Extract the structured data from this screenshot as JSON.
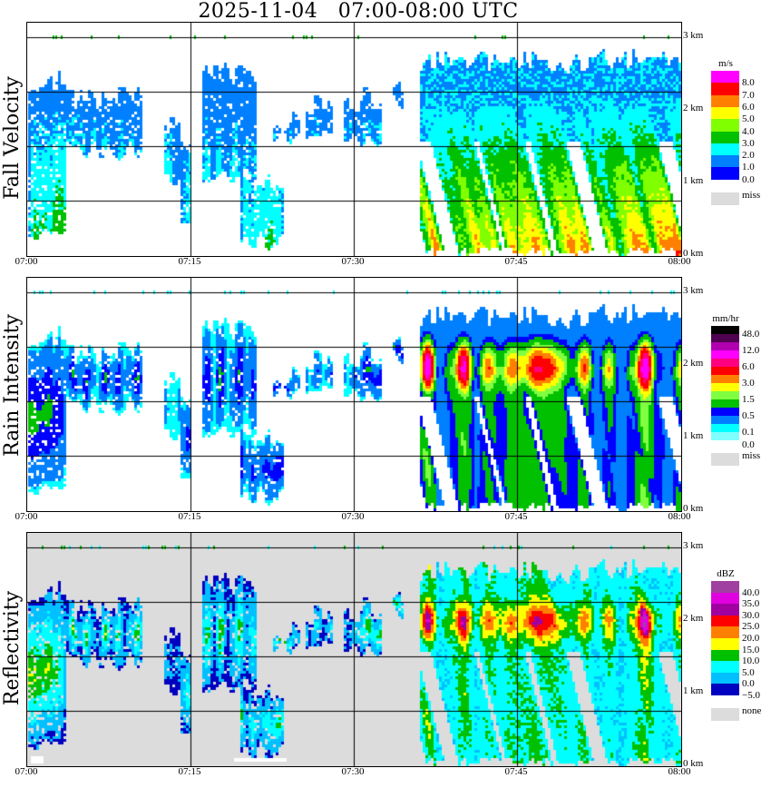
{
  "title": "2025-11-04   07:00-08:00 UTC",
  "chart_data": [
    {
      "type": "heatmap",
      "title": "Fall Velocity",
      "ylabel": "Fall Velocity",
      "unit": "m/s",
      "x_ticks": [
        "07:00",
        "07:15",
        "07:30",
        "07:45",
        "08:00"
      ],
      "xlim_minutes": [
        0,
        60
      ],
      "y_ticks": [
        "0 km",
        "1 km",
        "2 km",
        "3 km"
      ],
      "ylim_km": [
        0,
        3
      ],
      "colorbar_labels": [
        "8.0",
        "7.0",
        "6.0",
        "5.0",
        "4.0",
        "3.0",
        "2.0",
        "1.0",
        "0.0"
      ],
      "colorbar_colors": [
        "#ff00ff",
        "#ff0000",
        "#ff8000",
        "#ffff00",
        "#80ff00",
        "#00c000",
        "#00ffff",
        "#0080ff",
        "#0000ff"
      ],
      "missing_label": "miss",
      "missing_color": "#dcdcdc",
      "background": "#ffffff"
    },
    {
      "type": "heatmap",
      "title": "Rain Intensity",
      "ylabel": "Rain Intensity",
      "unit": "mm/hr",
      "x_ticks": [
        "07:00",
        "07:15",
        "07:30",
        "07:45",
        "08:00"
      ],
      "xlim_minutes": [
        0,
        60
      ],
      "y_ticks": [
        "0 km",
        "1 km",
        "2 km",
        "3 km"
      ],
      "ylim_km": [
        0,
        3
      ],
      "colorbar_labels": [
        "48.0",
        "12.0",
        "6.0",
        "3.0",
        "1.5",
        "0.5",
        "0.1",
        "0.0"
      ],
      "colorbar_colors": [
        "#000000",
        "#500050",
        "#b000b0",
        "#ff00ff",
        "#ff0080",
        "#ff0000",
        "#ff8000",
        "#ffff00",
        "#80ff40",
        "#00c000",
        "#0000ff",
        "#0080ff",
        "#00ffff",
        "#80ffff"
      ],
      "missing_label": "miss",
      "missing_color": "#dcdcdc",
      "background": "#ffffff"
    },
    {
      "type": "heatmap",
      "title": "Reflectivity",
      "ylabel": "Reflectivity",
      "unit": "dBZ",
      "x_ticks": [
        "07:00",
        "07:15",
        "07:30",
        "07:45",
        "08:00"
      ],
      "xlim_minutes": [
        0,
        60
      ],
      "y_ticks": [
        "0 km",
        "1 km",
        "2 km",
        "3 km"
      ],
      "ylim_km": [
        0,
        3
      ],
      "colorbar_labels": [
        "40.0",
        "35.0",
        "30.0",
        "25.0",
        "20.0",
        "15.0",
        "10.0",
        "5.0",
        "0.0",
        "−5.0"
      ],
      "colorbar_colors": [
        "#a040a0",
        "#e000e0",
        "#a000a0",
        "#ff0000",
        "#ff8000",
        "#ffff00",
        "#00c000",
        "#00ffff",
        "#00c0ff",
        "#0000c0"
      ],
      "missing_label": "none",
      "missing_color": "#dcdcdc",
      "background": "#dcdcdc"
    }
  ]
}
